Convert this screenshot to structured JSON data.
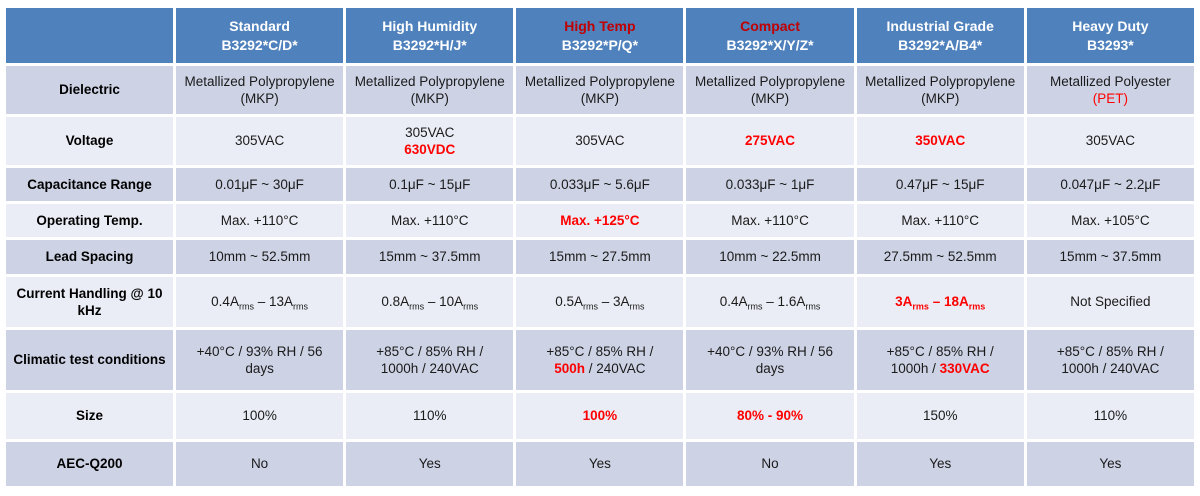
{
  "colors": {
    "header_bg": "#4F81BD",
    "band_dark": "#CDD3E5",
    "band_light": "#EAEDF5",
    "header_red": "#C00000",
    "value_red": "#FF0000",
    "text": "#1A1A1A"
  },
  "table": {
    "corner": "",
    "header_columns": [
      {
        "title": "Standard",
        "code": "B3292*C/D*",
        "red": false
      },
      {
        "title": "High Humidity",
        "code": "B3292*H/J*",
        "red": false
      },
      {
        "title": "High Temp",
        "code": "B3292*P/Q*",
        "red": true
      },
      {
        "title": "Compact",
        "code": "B3292*X/Y/Z*",
        "red": true
      },
      {
        "title": "Industrial Grade",
        "code": "B3292*A/B4*",
        "red": false
      },
      {
        "title": "Heavy Duty",
        "code": "B3293*",
        "red": false
      }
    ],
    "rows": [
      {
        "label": "Dielectric",
        "cells": [
          [
            {
              "t": "Metallized Polypropylene (MKP)"
            }
          ],
          [
            {
              "t": "Metallized Polypropylene (MKP)"
            }
          ],
          [
            {
              "t": "Metallized Polypropylene (MKP)"
            }
          ],
          [
            {
              "t": "Metallized Polypropylene (MKP)"
            }
          ],
          [
            {
              "t": "Metallized Polypropylene (MKP)"
            }
          ],
          [
            {
              "t": "Metallized Polyester"
            },
            {
              "br": true
            },
            {
              "t": "(PET)",
              "red": true
            }
          ]
        ]
      },
      {
        "label": "Voltage",
        "cells": [
          [
            {
              "t": "305VAC"
            }
          ],
          [
            {
              "t": "305VAC"
            },
            {
              "br": true
            },
            {
              "t": "630VDC",
              "red": true,
              "bold": true
            }
          ],
          [
            {
              "t": "305VAC"
            }
          ],
          [
            {
              "t": "275VAC",
              "red": true,
              "bold": true
            }
          ],
          [
            {
              "t": "350VAC",
              "red": true,
              "bold": true
            }
          ],
          [
            {
              "t": "305VAC"
            }
          ]
        ]
      },
      {
        "label": "Capacitance Range",
        "cells": [
          [
            {
              "t": "0.01μF ~ 30μF"
            }
          ],
          [
            {
              "t": "0.1μF ~ 15μF"
            }
          ],
          [
            {
              "t": "0.033μF ~ 5.6μF"
            }
          ],
          [
            {
              "t": "0.033μF ~ 1μF"
            }
          ],
          [
            {
              "t": "0.47μF ~ 15μF"
            }
          ],
          [
            {
              "t": "0.047μF ~ 2.2μF"
            }
          ]
        ]
      },
      {
        "label": "Operating Temp.",
        "cells": [
          [
            {
              "t": "Max. +110°C"
            }
          ],
          [
            {
              "t": "Max. +110°C"
            }
          ],
          [
            {
              "t": "Max. +125°C",
              "red": true,
              "bold": true
            }
          ],
          [
            {
              "t": "Max. +110°C"
            }
          ],
          [
            {
              "t": "Max. +110°C"
            }
          ],
          [
            {
              "t": "Max. +105°C"
            }
          ]
        ]
      },
      {
        "label": "Lead Spacing",
        "cells": [
          [
            {
              "t": "10mm ~ 52.5mm"
            }
          ],
          [
            {
              "t": "15mm ~ 37.5mm"
            }
          ],
          [
            {
              "t": "15mm ~ 27.5mm"
            }
          ],
          [
            {
              "t": "10mm ~ 22.5mm"
            }
          ],
          [
            {
              "t": "27.5mm ~ 52.5mm"
            }
          ],
          [
            {
              "t": "15mm ~ 37.5mm"
            }
          ]
        ]
      },
      {
        "label": "Current Handling @ 10 kHz",
        "cells": [
          [
            {
              "t": "0.4A"
            },
            {
              "t": "rms",
              "sub": true
            },
            {
              "t": " – 13A"
            },
            {
              "t": "rms",
              "sub": true
            }
          ],
          [
            {
              "t": "0.8A"
            },
            {
              "t": "rms",
              "sub": true
            },
            {
              "t": " – 10A"
            },
            {
              "t": "rms",
              "sub": true
            }
          ],
          [
            {
              "t": "0.5A"
            },
            {
              "t": "rms",
              "sub": true
            },
            {
              "t": " – 3A"
            },
            {
              "t": "rms",
              "sub": true
            }
          ],
          [
            {
              "t": "0.4A"
            },
            {
              "t": "rms",
              "sub": true
            },
            {
              "t": " – 1.6A"
            },
            {
              "t": "rms",
              "sub": true
            }
          ],
          [
            {
              "t": "3A",
              "red": true,
              "bold": true
            },
            {
              "t": "rms",
              "sub": true,
              "red": true,
              "bold": true
            },
            {
              "t": " – 18A",
              "red": true,
              "bold": true
            },
            {
              "t": "rms",
              "sub": true,
              "red": true,
              "bold": true
            }
          ],
          [
            {
              "t": "Not Specified"
            }
          ]
        ]
      },
      {
        "label": "Climatic test conditions",
        "cells": [
          [
            {
              "t": "+40°C / 93% RH / 56"
            },
            {
              "br": true
            },
            {
              "t": "days"
            }
          ],
          [
            {
              "t": "+85°C / 85% RH /"
            },
            {
              "br": true
            },
            {
              "t": "1000h / 240VAC"
            }
          ],
          [
            {
              "t": "+85°C / 85% RH /"
            },
            {
              "br": true
            },
            {
              "t": "500h",
              "red": true,
              "bold": true
            },
            {
              "t": " / 240VAC"
            }
          ],
          [
            {
              "t": "+40°C / 93% RH / 56"
            },
            {
              "br": true
            },
            {
              "t": "days"
            }
          ],
          [
            {
              "t": "+85°C / 85% RH /"
            },
            {
              "br": true
            },
            {
              "t": "1000h / "
            },
            {
              "t": "330VAC",
              "red": true,
              "bold": true
            }
          ],
          [
            {
              "t": "+85°C / 85% RH /"
            },
            {
              "br": true
            },
            {
              "t": "1000h / 240VAC"
            }
          ]
        ]
      },
      {
        "label": "Size",
        "cells": [
          [
            {
              "t": "100%"
            }
          ],
          [
            {
              "t": "110%"
            }
          ],
          [
            {
              "t": "100%",
              "red": true,
              "bold": true
            }
          ],
          [
            {
              "t": "80% - 90%",
              "red": true,
              "bold": true
            }
          ],
          [
            {
              "t": "150%"
            }
          ],
          [
            {
              "t": "110%"
            }
          ]
        ]
      },
      {
        "label": "AEC-Q200",
        "cells": [
          [
            {
              "t": "No"
            }
          ],
          [
            {
              "t": "Yes"
            }
          ],
          [
            {
              "t": "Yes"
            }
          ],
          [
            {
              "t": "No"
            }
          ],
          [
            {
              "t": "Yes"
            }
          ],
          [
            {
              "t": "Yes"
            }
          ]
        ]
      }
    ]
  }
}
